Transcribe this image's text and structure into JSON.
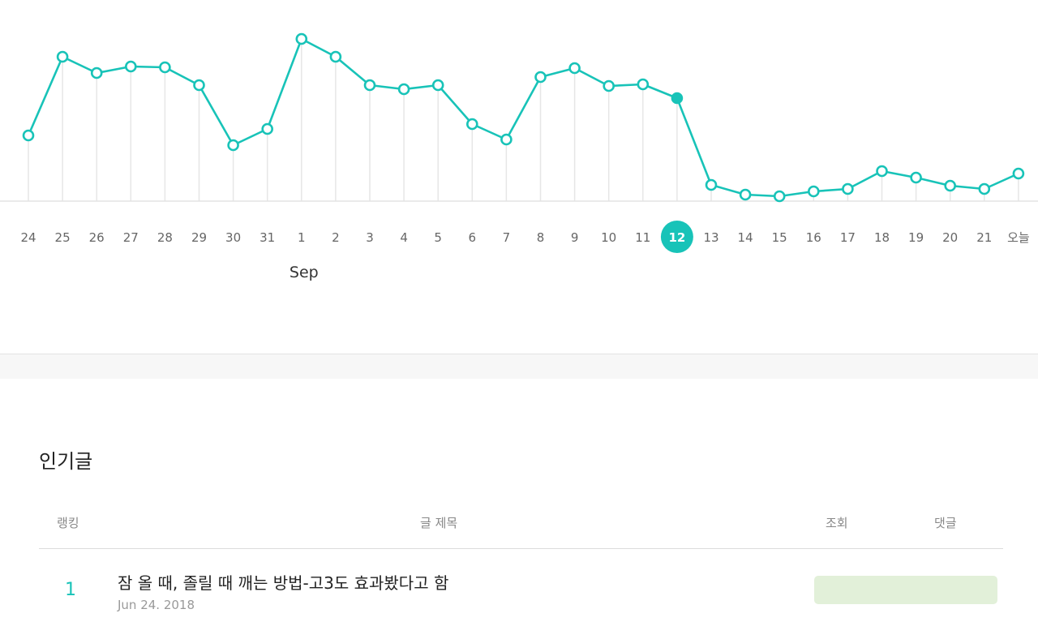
{
  "colors": {
    "accent": "#18c3b8",
    "views_bar": "#e2f0d9",
    "gridline": "#e6e6e6"
  },
  "chart_data": {
    "type": "line",
    "x": [
      "24",
      "25",
      "26",
      "27",
      "28",
      "29",
      "30",
      "31",
      "1",
      "2",
      "3",
      "4",
      "5",
      "6",
      "7",
      "8",
      "9",
      "10",
      "11",
      "12",
      "13",
      "14",
      "15",
      "16",
      "17",
      "18",
      "19",
      "20",
      "21",
      "오늘"
    ],
    "month_label": "Sep",
    "month_label_at": "1",
    "selected": "12",
    "series": [
      {
        "values": [
          81,
          178,
          158,
          166,
          165,
          143,
          69,
          89,
          200,
          178,
          143,
          138,
          143,
          95,
          76,
          153,
          164,
          142,
          144,
          127,
          20,
          8,
          6,
          12,
          15,
          37,
          29,
          19,
          15,
          34
        ]
      }
    ],
    "ylim": [
      0,
      204
    ],
    "grid": "vertical"
  },
  "popular": {
    "title": "인기글",
    "columns": {
      "rank": "랭킹",
      "title": "글 제목",
      "views": "조회",
      "comments": "댓글"
    },
    "rows": [
      {
        "rank": "1",
        "title": "잠 올 때, 졸릴 때 깨는 방법-고3도 효과봤다고 함",
        "date": "Jun 24. 2018"
      }
    ]
  }
}
